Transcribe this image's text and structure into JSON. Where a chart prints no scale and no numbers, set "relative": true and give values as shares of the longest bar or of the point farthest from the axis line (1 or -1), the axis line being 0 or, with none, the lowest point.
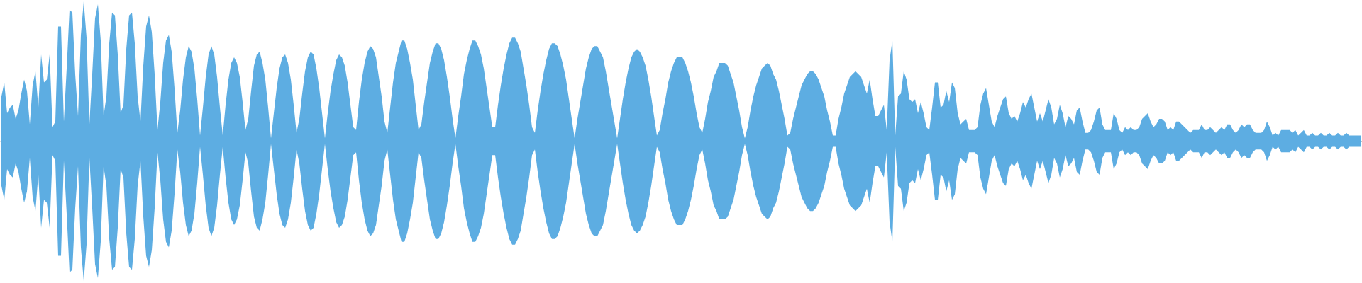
{
  "chart_data": {
    "type": "area",
    "relative": true,
    "categories": [
      null,
      null,
      null,
      null,
      null,
      null,
      null,
      null,
      null,
      null,
      null,
      null,
      null,
      null,
      null,
      null,
      null,
      null,
      null,
      null,
      null,
      null,
      null,
      null,
      null,
      null,
      null,
      null,
      null,
      null,
      null,
      null,
      null,
      null,
      null,
      null,
      null,
      null,
      null,
      null,
      null,
      null,
      null,
      null,
      null,
      null,
      null,
      null,
      null,
      null,
      null,
      null,
      null,
      null,
      null,
      null,
      null,
      null,
      null,
      null,
      null,
      null,
      null,
      null,
      null,
      null,
      null,
      null,
      null,
      null,
      null,
      null,
      null,
      null,
      null,
      null,
      null,
      null,
      null,
      null,
      null,
      null,
      null,
      null,
      null,
      null,
      null,
      null,
      null,
      null,
      null,
      null,
      null,
      null,
      null,
      null,
      null,
      null,
      null,
      null,
      null,
      null,
      null,
      null,
      null,
      null,
      null,
      null,
      null,
      null,
      null,
      null,
      null,
      null,
      null,
      null,
      null,
      null,
      null,
      null,
      null,
      null,
      null,
      null,
      null,
      null,
      null,
      null,
      null,
      null,
      null,
      null,
      null,
      null,
      null,
      null,
      null,
      null,
      null,
      null,
      null,
      null,
      null,
      null,
      null,
      null,
      null,
      null,
      null,
      null,
      null,
      null,
      null,
      null,
      null,
      null,
      null,
      null,
      null,
      null,
      null,
      null,
      null,
      null,
      null,
      null,
      null,
      null,
      null,
      null,
      null,
      null,
      null,
      null,
      null,
      null,
      null,
      null,
      null,
      null,
      null,
      null,
      null,
      null,
      null,
      null,
      null,
      null,
      null,
      null,
      null,
      null,
      null,
      null,
      null,
      null,
      null,
      null,
      null,
      null,
      null,
      null,
      null,
      null,
      null,
      null,
      null,
      null,
      null,
      null,
      null,
      null,
      null,
      null,
      null,
      null,
      null,
      null,
      null,
      null,
      null,
      null,
      null,
      null,
      null,
      null,
      null,
      null,
      null,
      null,
      null,
      null,
      null,
      null,
      null,
      null,
      null,
      null,
      null,
      null,
      null,
      null,
      null,
      null,
      null,
      null,
      null,
      null,
      null,
      null,
      null,
      null,
      null,
      null,
      null,
      null,
      null,
      null,
      null,
      null,
      null,
      null,
      null,
      null,
      null,
      null,
      null,
      null,
      null,
      null,
      null,
      null,
      null,
      null,
      null,
      null,
      null,
      null,
      null,
      null,
      null,
      null,
      null,
      null,
      null,
      null,
      null,
      null,
      null,
      null,
      null,
      null,
      null,
      null,
      null,
      null,
      null,
      null,
      null,
      null,
      null,
      null,
      null,
      null,
      null,
      null,
      null,
      null,
      null,
      null,
      null,
      null,
      null,
      null,
      null,
      null,
      null,
      null,
      null,
      null,
      null,
      null,
      null,
      null,
      null,
      null,
      null,
      null,
      null,
      null,
      null,
      null,
      null,
      null,
      null,
      null,
      null,
      null,
      null,
      null,
      null,
      null,
      null,
      null,
      null,
      null,
      null,
      null,
      null,
      null,
      null,
      null,
      null,
      null,
      null,
      null,
      null,
      null,
      null,
      null,
      null,
      null,
      null,
      null,
      null,
      null,
      null,
      null,
      null,
      null,
      null,
      null,
      null,
      null,
      null,
      null,
      null,
      null,
      null,
      null,
      null,
      null,
      null,
      null,
      null,
      null,
      null,
      null,
      null,
      null,
      null,
      null,
      null,
      null,
      null,
      null,
      null,
      null,
      null,
      null,
      null,
      null,
      null,
      null,
      null,
      null,
      null,
      null,
      null,
      null,
      null,
      null,
      null,
      null,
      null,
      null,
      null,
      null,
      null,
      null,
      null,
      null,
      null,
      null,
      null,
      null,
      null,
      null,
      null,
      null,
      null,
      null,
      null,
      null,
      null,
      null,
      null,
      null,
      null,
      null,
      null,
      null,
      null,
      null,
      null,
      null,
      null,
      null,
      null,
      null,
      null,
      null,
      null,
      null,
      null,
      null,
      null,
      null,
      null,
      null,
      null,
      null,
      null,
      null,
      null,
      null,
      null,
      null,
      null,
      null,
      null,
      null,
      null,
      null,
      null,
      null,
      null,
      null,
      null,
      null
    ],
    "series": [
      {
        "color": "#5dade2",
        "values": [
          0.32,
          0.42,
          0.2,
          0.24,
          0.26,
          0.16,
          0.22,
          0.34,
          0.44,
          0.36,
          0.12,
          0.4,
          0.5,
          0.24,
          0.62,
          0.42,
          0.44,
          0.62,
          0.1,
          0.14,
          0.82,
          0.82,
          0.14,
          0.52,
          0.94,
          0.92,
          0.48,
          0.18,
          0.76,
          1,
          0.74,
          0.12,
          0.48,
          0.88,
          0.98,
          0.72,
          0.18,
          0.32,
          0.7,
          0.92,
          0.9,
          0.62,
          0.2,
          0.26,
          0.66,
          0.9,
          0.92,
          0.7,
          0.32,
          0.14,
          0.54,
          0.82,
          0.9,
          0.78,
          0.48,
          0.08,
          0.28,
          0.56,
          0.72,
          0.76,
          0.64,
          0.38,
          0.06,
          0.22,
          0.44,
          0.6,
          0.68,
          0.64,
          0.52,
          0.3,
          0.04,
          0.24,
          0.46,
          0.62,
          0.68,
          0.62,
          0.46,
          0.24,
          0.04,
          0.26,
          0.44,
          0.56,
          0.6,
          0.56,
          0.46,
          0.28,
          0.08,
          0.16,
          0.36,
          0.54,
          0.62,
          0.64,
          0.56,
          0.44,
          0.24,
          0.02,
          0.2,
          0.38,
          0.52,
          0.6,
          0.62,
          0.56,
          0.44,
          0.26,
          0.06,
          0.16,
          0.34,
          0.5,
          0.6,
          0.64,
          0.62,
          0.52,
          0.38,
          0.2,
          0.02,
          0.2,
          0.36,
          0.48,
          0.58,
          0.62,
          0.6,
          0.54,
          0.42,
          0.26,
          0.1,
          0.08,
          0.28,
          0.44,
          0.56,
          0.64,
          0.68,
          0.66,
          0.6,
          0.46,
          0.32,
          0.14,
          0.06,
          0.24,
          0.42,
          0.56,
          0.64,
          0.72,
          0.72,
          0.66,
          0.56,
          0.44,
          0.26,
          0.08,
          0.12,
          0.28,
          0.42,
          0.56,
          0.64,
          0.7,
          0.7,
          0.66,
          0.58,
          0.46,
          0.32,
          0.16,
          0.02,
          0.18,
          0.32,
          0.48,
          0.58,
          0.66,
          0.72,
          0.72,
          0.68,
          0.62,
          0.52,
          0.38,
          0.24,
          0.1,
          0.1,
          0.26,
          0.4,
          0.52,
          0.62,
          0.7,
          0.74,
          0.74,
          0.7,
          0.64,
          0.52,
          0.4,
          0.26,
          0.1,
          0.06,
          0.22,
          0.36,
          0.48,
          0.58,
          0.66,
          0.7,
          0.7,
          0.68,
          0.62,
          0.54,
          0.44,
          0.3,
          0.16,
          0.02,
          0.16,
          0.28,
          0.4,
          0.52,
          0.6,
          0.66,
          0.68,
          0.68,
          0.64,
          0.6,
          0.5,
          0.38,
          0.26,
          0.14,
          0.02,
          0.16,
          0.3,
          0.42,
          0.52,
          0.6,
          0.64,
          0.66,
          0.64,
          0.6,
          0.54,
          0.44,
          0.32,
          0.18,
          0.04,
          0.08,
          0.2,
          0.3,
          0.42,
          0.5,
          0.56,
          0.6,
          0.6,
          0.6,
          0.56,
          0.5,
          0.42,
          0.32,
          0.2,
          0.1,
          0.06,
          0.16,
          0.28,
          0.36,
          0.46,
          0.5,
          0.56,
          0.56,
          0.56,
          0.54,
          0.48,
          0.42,
          0.32,
          0.22,
          0.1,
          0.02,
          0.1,
          0.22,
          0.32,
          0.4,
          0.46,
          0.52,
          0.54,
          0.56,
          0.54,
          0.48,
          0.44,
          0.36,
          0.26,
          0.16,
          0.04,
          0.06,
          0.16,
          0.24,
          0.32,
          0.4,
          0.44,
          0.48,
          0.5,
          0.5,
          0.48,
          0.44,
          0.38,
          0.32,
          0.22,
          0.14,
          0.04,
          0.04,
          0.16,
          0.24,
          0.34,
          0.4,
          0.46,
          0.48,
          0.5,
          0.48,
          0.46,
          0.4,
          0.34,
          0.44,
          0.3,
          0.18,
          0.18,
          0.22,
          0.26,
          0.08,
          0.58,
          0.72,
          0.04,
          0.32,
          0.34,
          0.5,
          0.44,
          0.3,
          0.28,
          0.3,
          0.2,
          0.28,
          0.2,
          0.1,
          0.08,
          0.24,
          0.42,
          0.42,
          0.24,
          0.26,
          0.36,
          0.28,
          0.42,
          0.38,
          0.2,
          0.12,
          0.14,
          0.16,
          0.08,
          0.08,
          0.08,
          0.1,
          0.26,
          0.34,
          0.38,
          0.26,
          0.14,
          0.1,
          0.18,
          0.24,
          0.3,
          0.32,
          0.2,
          0.16,
          0.18,
          0.14,
          0.2,
          0.28,
          0.24,
          0.3,
          0.34,
          0.24,
          0.14,
          0.2,
          0.14,
          0.22,
          0.3,
          0.24,
          0.12,
          0.16,
          0.26,
          0.2,
          0.1,
          0.18,
          0.16,
          0.12,
          0.22,
          0.24,
          0.14,
          0.06,
          0.06,
          0.08,
          0.14,
          0.22,
          0.24,
          0.12,
          0.08,
          0.08,
          0.08,
          0.2,
          0.16,
          0.08,
          0.06,
          0.1,
          0.08,
          0.1,
          0.08,
          0.08,
          0.1,
          0.16,
          0.18,
          0.2,
          0.14,
          0.1,
          0.12,
          0.16,
          0.16,
          0.14,
          0.08,
          0.1,
          0.08,
          0.14,
          0.14,
          0.12,
          0.1,
          0.08,
          0.06,
          0.08,
          0.08,
          0.08,
          0.12,
          0.08,
          0.08,
          0.1,
          0.08,
          0.06,
          0.08,
          0.1,
          0.08,
          0.12,
          0.12,
          0.08,
          0.06,
          0.08,
          0.12,
          0.1,
          0.12,
          0.12,
          0.08,
          0.06,
          0.06,
          0.06,
          0.08,
          0.14,
          0.1,
          0.04,
          0.06,
          0.04,
          0.08,
          0.08,
          0.08,
          0.08,
          0.06,
          0.08,
          0.04,
          0.06,
          0.08,
          0.04,
          0.04,
          0.06,
          0.04,
          0.04,
          0.06,
          0.04,
          0.04,
          0.06,
          0.04,
          0.04,
          0.06,
          0.04,
          0.04,
          0.06,
          0.04,
          0.04,
          0.04,
          0.04,
          0.04
        ]
      },
      {
        "color": "#5dade2",
        "values": [
          -0.32,
          -0.42,
          -0.2,
          -0.24,
          -0.26,
          -0.16,
          -0.22,
          -0.34,
          -0.44,
          -0.36,
          -0.12,
          -0.4,
          -0.5,
          -0.24,
          -0.62,
          -0.42,
          -0.44,
          -0.62,
          -0.1,
          -0.14,
          -0.82,
          -0.82,
          -0.14,
          -0.52,
          -0.94,
          -0.92,
          -0.48,
          -0.18,
          -0.76,
          -1,
          -0.74,
          -0.12,
          -0.48,
          -0.88,
          -0.98,
          -0.72,
          -0.18,
          -0.32,
          -0.7,
          -0.92,
          -0.9,
          -0.62,
          -0.2,
          -0.26,
          -0.66,
          -0.9,
          -0.92,
          -0.7,
          -0.32,
          -0.14,
          -0.54,
          -0.82,
          -0.9,
          -0.78,
          -0.48,
          -0.08,
          -0.28,
          -0.56,
          -0.72,
          -0.76,
          -0.64,
          -0.38,
          -0.06,
          -0.22,
          -0.44,
          -0.6,
          -0.68,
          -0.64,
          -0.52,
          -0.3,
          -0.04,
          -0.24,
          -0.46,
          -0.62,
          -0.68,
          -0.62,
          -0.46,
          -0.24,
          -0.04,
          -0.26,
          -0.44,
          -0.56,
          -0.6,
          -0.56,
          -0.46,
          -0.28,
          -0.08,
          -0.16,
          -0.36,
          -0.54,
          -0.62,
          -0.64,
          -0.56,
          -0.44,
          -0.24,
          -0.02,
          -0.2,
          -0.38,
          -0.52,
          -0.6,
          -0.62,
          -0.56,
          -0.44,
          -0.26,
          -0.06,
          -0.16,
          -0.34,
          -0.5,
          -0.6,
          -0.64,
          -0.62,
          -0.52,
          -0.38,
          -0.2,
          -0.02,
          -0.2,
          -0.36,
          -0.48,
          -0.58,
          -0.62,
          -0.6,
          -0.54,
          -0.42,
          -0.26,
          -0.1,
          -0.08,
          -0.28,
          -0.44,
          -0.56,
          -0.64,
          -0.68,
          -0.66,
          -0.6,
          -0.46,
          -0.32,
          -0.14,
          -0.06,
          -0.24,
          -0.42,
          -0.56,
          -0.64,
          -0.72,
          -0.72,
          -0.66,
          -0.56,
          -0.44,
          -0.26,
          -0.08,
          -0.12,
          -0.28,
          -0.42,
          -0.56,
          -0.64,
          -0.7,
          -0.7,
          -0.66,
          -0.58,
          -0.46,
          -0.32,
          -0.16,
          -0.02,
          -0.18,
          -0.32,
          -0.48,
          -0.58,
          -0.66,
          -0.72,
          -0.72,
          -0.68,
          -0.62,
          -0.52,
          -0.38,
          -0.24,
          -0.1,
          -0.1,
          -0.26,
          -0.4,
          -0.52,
          -0.62,
          -0.7,
          -0.74,
          -0.74,
          -0.7,
          -0.64,
          -0.52,
          -0.4,
          -0.26,
          -0.1,
          -0.06,
          -0.22,
          -0.36,
          -0.48,
          -0.58,
          -0.66,
          -0.7,
          -0.7,
          -0.68,
          -0.62,
          -0.54,
          -0.44,
          -0.3,
          -0.16,
          -0.02,
          -0.16,
          -0.28,
          -0.4,
          -0.52,
          -0.6,
          -0.66,
          -0.68,
          -0.68,
          -0.64,
          -0.6,
          -0.5,
          -0.38,
          -0.26,
          -0.14,
          -0.02,
          -0.16,
          -0.3,
          -0.42,
          -0.52,
          -0.6,
          -0.64,
          -0.66,
          -0.64,
          -0.6,
          -0.54,
          -0.44,
          -0.32,
          -0.18,
          -0.04,
          -0.08,
          -0.2,
          -0.3,
          -0.42,
          -0.5,
          -0.56,
          -0.6,
          -0.6,
          -0.6,
          -0.56,
          -0.5,
          -0.42,
          -0.32,
          -0.2,
          -0.1,
          -0.06,
          -0.16,
          -0.28,
          -0.36,
          -0.46,
          -0.5,
          -0.56,
          -0.56,
          -0.56,
          -0.54,
          -0.48,
          -0.42,
          -0.32,
          -0.22,
          -0.1,
          -0.02,
          -0.1,
          -0.22,
          -0.32,
          -0.4,
          -0.46,
          -0.52,
          -0.54,
          -0.56,
          -0.54,
          -0.48,
          -0.44,
          -0.36,
          -0.26,
          -0.16,
          -0.04,
          -0.06,
          -0.16,
          -0.24,
          -0.32,
          -0.4,
          -0.44,
          -0.48,
          -0.5,
          -0.5,
          -0.48,
          -0.44,
          -0.38,
          -0.32,
          -0.22,
          -0.14,
          -0.04,
          -0.04,
          -0.16,
          -0.24,
          -0.34,
          -0.4,
          -0.46,
          -0.48,
          -0.5,
          -0.48,
          -0.46,
          -0.4,
          -0.34,
          -0.44,
          -0.3,
          -0.18,
          -0.18,
          -0.22,
          -0.26,
          -0.08,
          -0.58,
          -0.72,
          -0.04,
          -0.32,
          -0.34,
          -0.5,
          -0.44,
          -0.3,
          -0.28,
          -0.3,
          -0.2,
          -0.28,
          -0.2,
          -0.1,
          -0.08,
          -0.24,
          -0.42,
          -0.42,
          -0.24,
          -0.26,
          -0.36,
          -0.28,
          -0.42,
          -0.38,
          -0.2,
          -0.12,
          -0.14,
          -0.16,
          -0.08,
          -0.08,
          -0.08,
          -0.1,
          -0.26,
          -0.34,
          -0.38,
          -0.26,
          -0.14,
          -0.1,
          -0.18,
          -0.24,
          -0.3,
          -0.32,
          -0.2,
          -0.16,
          -0.18,
          -0.14,
          -0.2,
          -0.28,
          -0.24,
          -0.3,
          -0.34,
          -0.24,
          -0.14,
          -0.2,
          -0.14,
          -0.22,
          -0.3,
          -0.24,
          -0.12,
          -0.16,
          -0.26,
          -0.2,
          -0.1,
          -0.18,
          -0.16,
          -0.12,
          -0.22,
          -0.24,
          -0.14,
          -0.06,
          -0.06,
          -0.08,
          -0.14,
          -0.22,
          -0.24,
          -0.12,
          -0.08,
          -0.08,
          -0.08,
          -0.2,
          -0.16,
          -0.08,
          -0.06,
          -0.1,
          -0.08,
          -0.1,
          -0.08,
          -0.08,
          -0.1,
          -0.16,
          -0.18,
          -0.2,
          -0.14,
          -0.1,
          -0.12,
          -0.16,
          -0.16,
          -0.14,
          -0.08,
          -0.1,
          -0.08,
          -0.14,
          -0.14,
          -0.12,
          -0.1,
          -0.08,
          -0.06,
          -0.08,
          -0.08,
          -0.08,
          -0.12,
          -0.08,
          -0.08,
          -0.1,
          -0.08,
          -0.06,
          -0.08,
          -0.1,
          -0.08,
          -0.12,
          -0.12,
          -0.08,
          -0.06,
          -0.08,
          -0.12,
          -0.1,
          -0.12,
          -0.12,
          -0.08,
          -0.06,
          -0.06,
          -0.06,
          -0.08,
          -0.14,
          -0.1,
          -0.04,
          -0.06,
          -0.04,
          -0.08,
          -0.08,
          -0.08,
          -0.08,
          -0.06,
          -0.08,
          -0.04,
          -0.06,
          -0.08,
          -0.04,
          -0.04,
          -0.06,
          -0.04,
          -0.04,
          -0.06,
          -0.04,
          -0.04,
          -0.06,
          -0.04,
          -0.04,
          -0.06,
          -0.04,
          -0.04,
          -0.06,
          -0.04,
          -0.04,
          -0.04,
          -0.04,
          -0.04
        ]
      }
    ]
  }
}
